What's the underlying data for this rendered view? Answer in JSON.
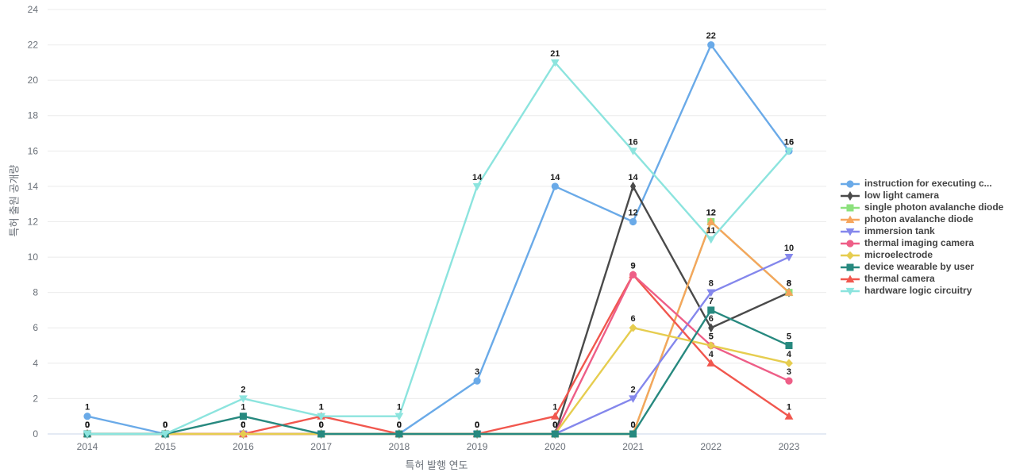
{
  "chart_data": {
    "type": "line",
    "title": "",
    "xlabel": "특허 발행 연도",
    "ylabel": "특허 출원 공개량",
    "x": [
      2014,
      2015,
      2016,
      2017,
      2018,
      2019,
      2020,
      2021,
      2022,
      2023
    ],
    "ylim": [
      0,
      24
    ],
    "ytick_interval": 2,
    "grid": true,
    "legend_position": "right",
    "series": [
      {
        "id": "instruction-for-executing",
        "name": "instruction for executing c...",
        "color": "#6aaae8",
        "marker": "circle",
        "values": [
          1,
          0,
          0,
          0,
          0,
          3,
          14,
          12,
          22,
          16
        ]
      },
      {
        "id": "low-light-camera",
        "name": "low light camera",
        "color": "#4a4a4a",
        "marker": "diamond-tall",
        "values": [
          0,
          0,
          0,
          0,
          0,
          0,
          0,
          14,
          6,
          8
        ]
      },
      {
        "id": "single-photon-avalanche-diode",
        "name": "single photon avalanche diode",
        "color": "#8ce17d",
        "marker": "square",
        "values": [
          0,
          0,
          0,
          0,
          0,
          0,
          0,
          0,
          12,
          8
        ]
      },
      {
        "id": "photon-avalanche-diode",
        "name": "photon avalanche diode",
        "color": "#f6a55c",
        "marker": "triangle-up",
        "values": [
          0,
          0,
          0,
          0,
          0,
          0,
          0,
          0,
          12,
          8
        ]
      },
      {
        "id": "immersion-tank",
        "name": "immersion tank",
        "color": "#8487ec",
        "marker": "triangle-down",
        "values": [
          0,
          0,
          0,
          0,
          0,
          0,
          0,
          2,
          8,
          10
        ]
      },
      {
        "id": "thermal-imaging-camera",
        "name": "thermal imaging camera",
        "color": "#ee5e87",
        "marker": "circle",
        "values": [
          0,
          0,
          0,
          0,
          0,
          0,
          0,
          9,
          5,
          3
        ]
      },
      {
        "id": "microelectrode",
        "name": "microelectrode",
        "color": "#e6cd4f",
        "marker": "diamond",
        "values": [
          0,
          0,
          0,
          0,
          0,
          0,
          0,
          6,
          5,
          4
        ]
      },
      {
        "id": "device-wearable-by-user",
        "name": "device wearable by user",
        "color": "#27897f",
        "marker": "square",
        "values": [
          0,
          0,
          1,
          0,
          0,
          0,
          0,
          0,
          7,
          5
        ]
      },
      {
        "id": "thermal-camera",
        "name": "thermal camera",
        "color": "#f1574e",
        "marker": "triangle-up",
        "values": [
          0,
          0,
          0,
          1,
          0,
          0,
          1,
          9,
          4,
          1
        ]
      },
      {
        "id": "hardware-logic-circuitry",
        "name": "hardware logic circuitry",
        "color": "#8ce4de",
        "marker": "triangle-down",
        "values": [
          0,
          0,
          2,
          1,
          1,
          14,
          21,
          16,
          11,
          16
        ]
      }
    ]
  },
  "colors": {
    "background": "#ffffff",
    "gridline": "#ebebeb",
    "zero_line": "#c9d5e8",
    "tick_text": "#6a7078",
    "data_label_text": "#1c1c1c",
    "legend_text": "#434343"
  }
}
